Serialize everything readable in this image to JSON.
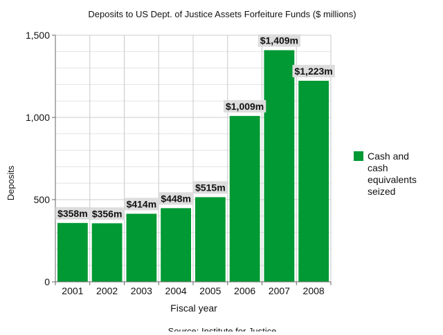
{
  "chart_data": {
    "type": "bar",
    "title": "Deposits to US Dept. of Justice Assets Forfeiture Funds ($ millions)",
    "xlabel": "Fiscal year",
    "ylabel": "Deposits",
    "source": "Source: Institute for Justice",
    "categories": [
      "2001",
      "2002",
      "2003",
      "2004",
      "2005",
      "2006",
      "2007",
      "2008"
    ],
    "series": [
      {
        "name": "Cash and cash equivalents seized",
        "legend_lines": [
          "Cash and",
          "cash",
          "equivalents",
          "seized"
        ],
        "color": "#009933",
        "values": [
          358,
          356,
          414,
          448,
          515,
          1009,
          1409,
          1223
        ],
        "data_labels": [
          "$358m",
          "$356m",
          "$414m",
          "$448m",
          "$515m",
          "$1,009m",
          "$1,409m",
          "$1,223m"
        ]
      }
    ],
    "ylim": [
      0,
      1500
    ],
    "yticks": [
      0,
      500,
      1000,
      1500
    ],
    "ytick_labels": [
      "0",
      "500",
      "1,000",
      "1,500"
    ],
    "minor_grid_step": 100,
    "grid": true,
    "legend_position": "right",
    "colors": {
      "bar": "#009933",
      "label_bg": "#dddddd",
      "grid": "#cccccc"
    }
  }
}
